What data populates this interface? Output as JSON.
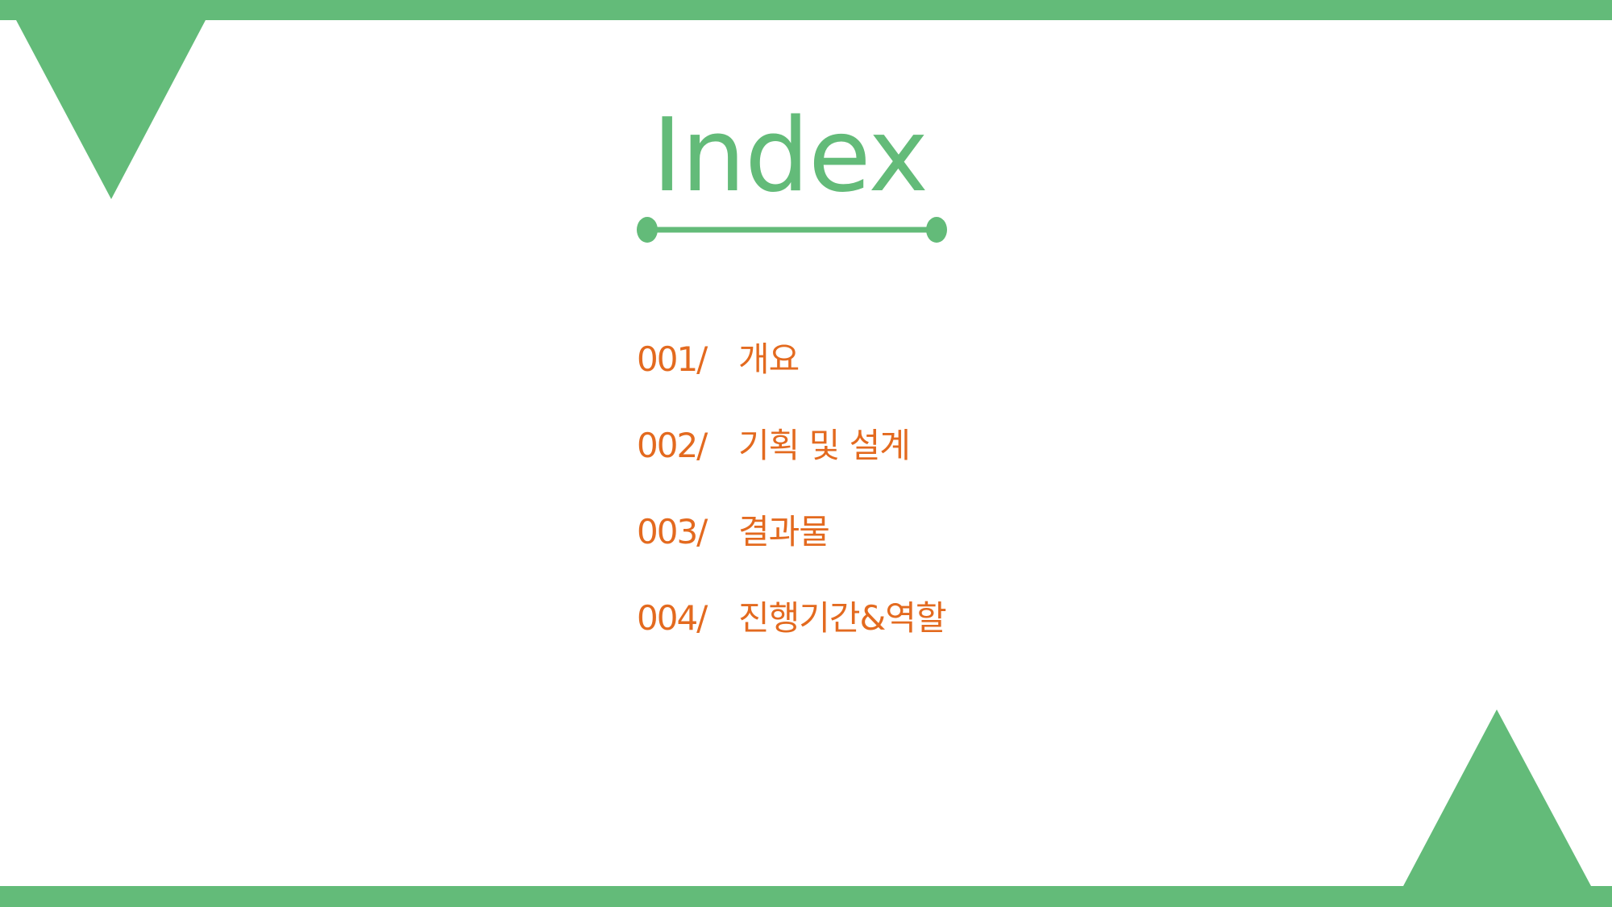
{
  "colors": {
    "accent_green": "#63bb79",
    "text_orange": "#e36a1f",
    "background": "#ffffff"
  },
  "title": "Index",
  "toc": [
    {
      "number": "001/",
      "label": "개요"
    },
    {
      "number": "002/",
      "label": "기획 및 설계"
    },
    {
      "number": "003/",
      "label": "결과물"
    },
    {
      "number": "004/",
      "label": "진행기간&역할"
    }
  ]
}
